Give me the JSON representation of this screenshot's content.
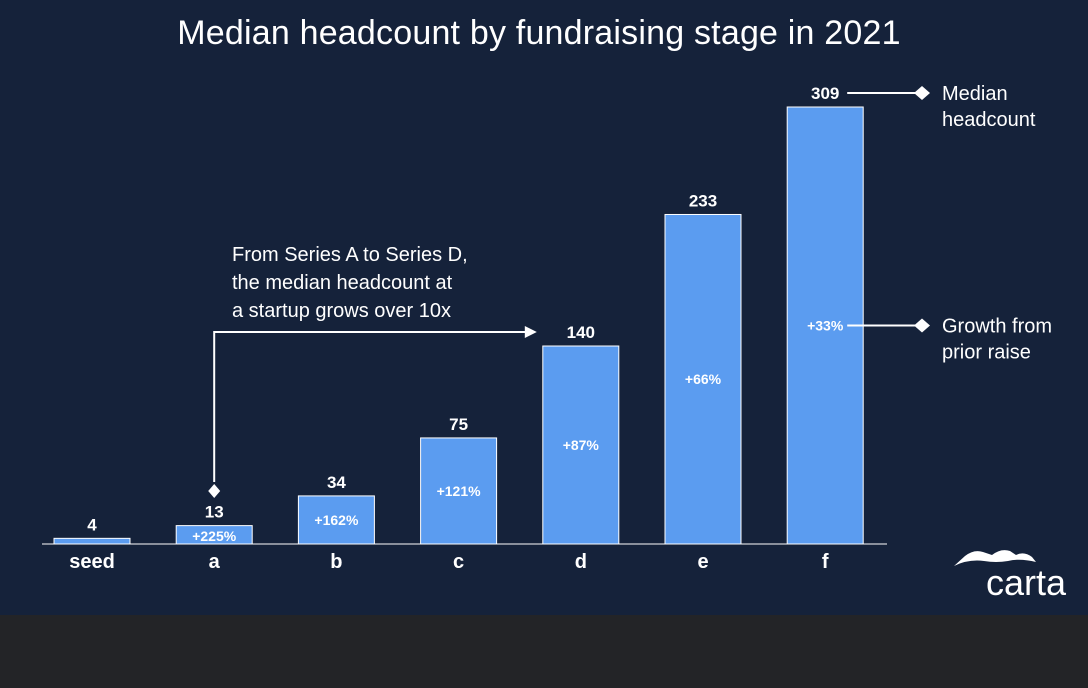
{
  "chart_data": {
    "type": "bar",
    "title": "Median headcount by fundraising stage in 2021",
    "categories": [
      "seed",
      "a",
      "b",
      "c",
      "d",
      "e",
      "f"
    ],
    "values": [
      4,
      13,
      34,
      75,
      140,
      233,
      309
    ],
    "value_labels": [
      "4",
      "13",
      "34",
      "75",
      "140",
      "233",
      "309"
    ],
    "growth_labels": [
      "",
      "+225%",
      "+162%",
      "+121%",
      "+87%",
      "+66%",
      "+33%"
    ],
    "ylim": [
      0,
      309
    ],
    "grid": false,
    "annotation": {
      "lines": [
        "From Series A to Series D,",
        "the median headcount at",
        "a startup grows over 10x"
      ],
      "from_category": "a",
      "to_category": "d"
    },
    "legend": {
      "placement": "right",
      "value_key": [
        "Median",
        "headcount"
      ],
      "growth_key": [
        "Growth from",
        "prior raise"
      ]
    },
    "colors": {
      "bar": "#5b9cf0",
      "background": "#15223a",
      "text": "#ffffff"
    }
  },
  "brand": {
    "logo_text": "carta"
  }
}
